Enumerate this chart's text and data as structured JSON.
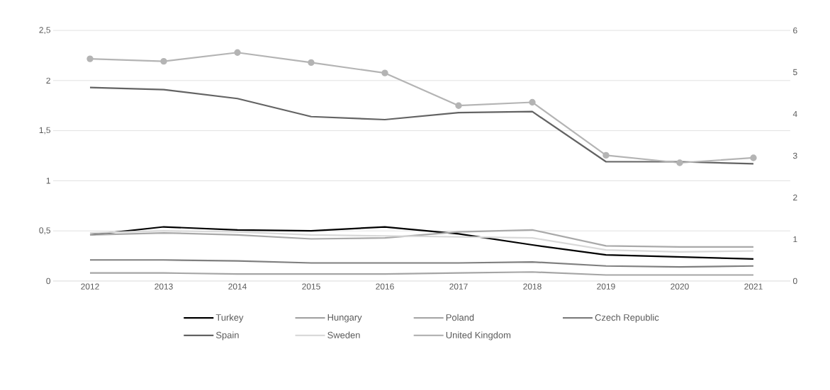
{
  "chart_data": {
    "type": "line",
    "categories": [
      "2012",
      "2013",
      "2014",
      "2015",
      "2016",
      "2017",
      "2018",
      "2019",
      "2020",
      "2021"
    ],
    "series": [
      {
        "name": "Turkey",
        "color": "#000000",
        "values": [
          0.46,
          0.54,
          0.51,
          0.5,
          0.54,
          0.47,
          0.36,
          0.26,
          0.24,
          0.22
        ]
      },
      {
        "name": "Hungary",
        "color": "#a5a5a5",
        "values": [
          0.08,
          0.08,
          0.07,
          0.07,
          0.07,
          0.08,
          0.09,
          0.06,
          0.06,
          0.06
        ]
      },
      {
        "name": "Poland",
        "color": "#a9a9a9",
        "values": [
          0.46,
          0.48,
          0.46,
          0.42,
          0.43,
          0.49,
          0.51,
          0.35,
          0.34,
          0.34
        ]
      },
      {
        "name": "Czech Republic",
        "color": "#7f7f7f",
        "values": [
          0.21,
          0.21,
          0.2,
          0.18,
          0.18,
          0.18,
          0.19,
          0.15,
          0.14,
          0.15
        ]
      },
      {
        "name": "Spain",
        "color": "#636363",
        "values": [
          1.93,
          1.91,
          1.82,
          1.64,
          1.61,
          1.68,
          1.69,
          1.19,
          1.19,
          1.17
        ]
      },
      {
        "name": "Sweden",
        "color": "#d9d9d9",
        "values": [
          0.48,
          0.5,
          0.49,
          0.46,
          0.45,
          0.44,
          0.43,
          0.31,
          0.29,
          0.3
        ]
      },
      {
        "name": "United Kingdom",
        "color": "#b4b4b4",
        "axis": "y2",
        "marker": "circle",
        "values": [
          5.32,
          5.26,
          5.47,
          5.23,
          4.98,
          4.2,
          4.28,
          3.01,
          2.83,
          2.95
        ]
      }
    ],
    "ylim": [
      0,
      2.5
    ],
    "yticks": [
      0,
      {
        "value": 0.5,
        "label": "0,5"
      },
      1,
      {
        "value": 1.5,
        "label": "1,5"
      },
      2,
      {
        "value": 2.5,
        "label": "2,5"
      }
    ],
    "y2lim": [
      0,
      6
    ],
    "y2ticks": [
      0,
      1,
      2,
      3,
      4,
      5,
      6
    ],
    "grid": "y",
    "legend": "bottom",
    "marker": "none",
    "line_style": "solid"
  }
}
